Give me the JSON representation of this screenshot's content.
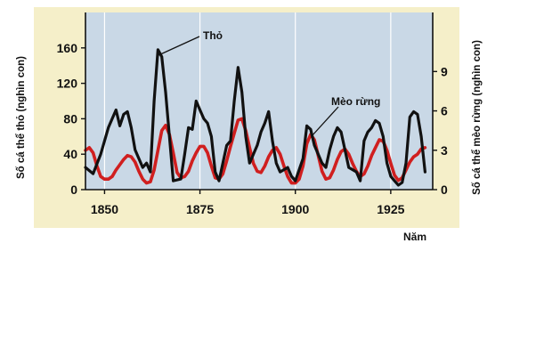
{
  "chart_data": {
    "type": "line",
    "xlabel": "Năm",
    "ylabel_left": "Số cá thể thỏ (nghìn con)",
    "ylabel_right": "Số cá thể mèo rừng (nghìn con)",
    "xlim": [
      1845,
      1936
    ],
    "ylim_left": [
      0,
      200
    ],
    "ylim_right": [
      0,
      13.5
    ],
    "x_ticks": [
      1850,
      1875,
      1900,
      1925
    ],
    "y_ticks_left": [
      0,
      40,
      80,
      120,
      160
    ],
    "y_ticks_right": [
      0,
      3,
      6,
      9
    ],
    "grid": "vertical",
    "series": [
      {
        "name": "Thỏ",
        "axis": "left",
        "color": "#111111",
        "points": [
          [
            1845,
            25
          ],
          [
            1847,
            18
          ],
          [
            1849,
            40
          ],
          [
            1851,
            70
          ],
          [
            1852,
            80
          ],
          [
            1853,
            90
          ],
          [
            1854,
            72
          ],
          [
            1855,
            85
          ],
          [
            1856,
            88
          ],
          [
            1857,
            70
          ],
          [
            1858,
            45
          ],
          [
            1860,
            25
          ],
          [
            1861,
            30
          ],
          [
            1862,
            20
          ],
          [
            1863,
            100
          ],
          [
            1864,
            158
          ],
          [
            1865,
            150
          ],
          [
            1866,
            110
          ],
          [
            1867,
            60
          ],
          [
            1868,
            10
          ],
          [
            1870,
            12
          ],
          [
            1871,
            40
          ],
          [
            1872,
            70
          ],
          [
            1873,
            68
          ],
          [
            1874,
            100
          ],
          [
            1875,
            90
          ],
          [
            1876,
            80
          ],
          [
            1877,
            75
          ],
          [
            1878,
            60
          ],
          [
            1879,
            20
          ],
          [
            1880,
            10
          ],
          [
            1882,
            50
          ],
          [
            1883,
            55
          ],
          [
            1884,
            100
          ],
          [
            1885,
            138
          ],
          [
            1886,
            110
          ],
          [
            1887,
            60
          ],
          [
            1888,
            30
          ],
          [
            1889,
            40
          ],
          [
            1890,
            50
          ],
          [
            1891,
            65
          ],
          [
            1892,
            75
          ],
          [
            1893,
            88
          ],
          [
            1894,
            55
          ],
          [
            1895,
            30
          ],
          [
            1896,
            20
          ],
          [
            1898,
            25
          ],
          [
            1899,
            15
          ],
          [
            1900,
            10
          ],
          [
            1902,
            35
          ],
          [
            1903,
            72
          ],
          [
            1904,
            68
          ],
          [
            1905,
            50
          ],
          [
            1906,
            40
          ],
          [
            1907,
            30
          ],
          [
            1908,
            25
          ],
          [
            1909,
            45
          ],
          [
            1910,
            60
          ],
          [
            1911,
            70
          ],
          [
            1912,
            65
          ],
          [
            1913,
            45
          ],
          [
            1914,
            25
          ],
          [
            1916,
            20
          ],
          [
            1917,
            10
          ],
          [
            1918,
            55
          ],
          [
            1919,
            65
          ],
          [
            1920,
            70
          ],
          [
            1921,
            78
          ],
          [
            1922,
            75
          ],
          [
            1923,
            60
          ],
          [
            1924,
            30
          ],
          [
            1925,
            15
          ],
          [
            1926,
            10
          ],
          [
            1927,
            5
          ],
          [
            1928,
            8
          ],
          [
            1929,
            30
          ],
          [
            1930,
            82
          ],
          [
            1931,
            88
          ],
          [
            1932,
            85
          ],
          [
            1933,
            60
          ],
          [
            1934,
            20
          ]
        ]
      },
      {
        "name": "Mèo rừng",
        "axis": "right",
        "color": "#d01f1f",
        "points": [
          [
            1845,
            3.0
          ],
          [
            1846,
            3.2
          ],
          [
            1847,
            2.8
          ],
          [
            1848,
            1.8
          ],
          [
            1849,
            1.0
          ],
          [
            1850,
            0.8
          ],
          [
            1851,
            0.8
          ],
          [
            1852,
            1.0
          ],
          [
            1853,
            1.5
          ],
          [
            1854,
            1.9
          ],
          [
            1855,
            2.3
          ],
          [
            1856,
            2.6
          ],
          [
            1857,
            2.5
          ],
          [
            1858,
            2.1
          ],
          [
            1859,
            1.4
          ],
          [
            1860,
            0.8
          ],
          [
            1861,
            0.5
          ],
          [
            1862,
            0.6
          ],
          [
            1863,
            1.5
          ],
          [
            1864,
            3.0
          ],
          [
            1865,
            4.5
          ],
          [
            1866,
            4.9
          ],
          [
            1867,
            4.2
          ],
          [
            1868,
            2.8
          ],
          [
            1869,
            1.3
          ],
          [
            1870,
            0.9
          ],
          [
            1871,
            1.0
          ],
          [
            1872,
            1.4
          ],
          [
            1873,
            2.2
          ],
          [
            1874,
            2.8
          ],
          [
            1875,
            3.3
          ],
          [
            1876,
            3.3
          ],
          [
            1877,
            2.8
          ],
          [
            1878,
            1.8
          ],
          [
            1879,
            0.9
          ],
          [
            1880,
            0.8
          ],
          [
            1881,
            1.2
          ],
          [
            1882,
            2.2
          ],
          [
            1883,
            3.3
          ],
          [
            1884,
            4.3
          ],
          [
            1885,
            5.3
          ],
          [
            1886,
            5.4
          ],
          [
            1887,
            4.5
          ],
          [
            1888,
            3.2
          ],
          [
            1889,
            2.0
          ],
          [
            1890,
            1.4
          ],
          [
            1891,
            1.3
          ],
          [
            1892,
            1.8
          ],
          [
            1893,
            2.5
          ],
          [
            1894,
            3.0
          ],
          [
            1895,
            3.2
          ],
          [
            1896,
            2.7
          ],
          [
            1897,
            1.8
          ],
          [
            1898,
            1.0
          ],
          [
            1899,
            0.5
          ],
          [
            1900,
            0.5
          ],
          [
            1901,
            0.8
          ],
          [
            1902,
            1.8
          ],
          [
            1903,
            3.5
          ],
          [
            1904,
            4.2
          ],
          [
            1905,
            3.8
          ],
          [
            1906,
            2.6
          ],
          [
            1907,
            1.4
          ],
          [
            1908,
            0.8
          ],
          [
            1909,
            0.9
          ],
          [
            1910,
            1.5
          ],
          [
            1911,
            2.3
          ],
          [
            1912,
            2.9
          ],
          [
            1913,
            3.1
          ],
          [
            1914,
            2.7
          ],
          [
            1915,
            2.0
          ],
          [
            1916,
            1.4
          ],
          [
            1917,
            1.0
          ],
          [
            1918,
            1.2
          ],
          [
            1919,
            1.8
          ],
          [
            1920,
            2.6
          ],
          [
            1921,
            3.2
          ],
          [
            1922,
            3.8
          ],
          [
            1923,
            3.7
          ],
          [
            1924,
            3.0
          ],
          [
            1925,
            2.0
          ],
          [
            1926,
            1.1
          ],
          [
            1927,
            0.7
          ],
          [
            1928,
            0.9
          ],
          [
            1929,
            1.5
          ],
          [
            1930,
            2.1
          ],
          [
            1931,
            2.5
          ],
          [
            1932,
            2.7
          ],
          [
            1933,
            3.1
          ],
          [
            1934,
            3.2
          ]
        ]
      }
    ],
    "annotations": [
      {
        "text": "Thỏ",
        "series": "Thỏ"
      },
      {
        "text": "Mèo rừng",
        "series": "Mèo rừng"
      }
    ]
  },
  "colors": {
    "plot_background": "#c9d8e6",
    "outer_background": "#f5efc9",
    "grid": "#ffffff"
  }
}
